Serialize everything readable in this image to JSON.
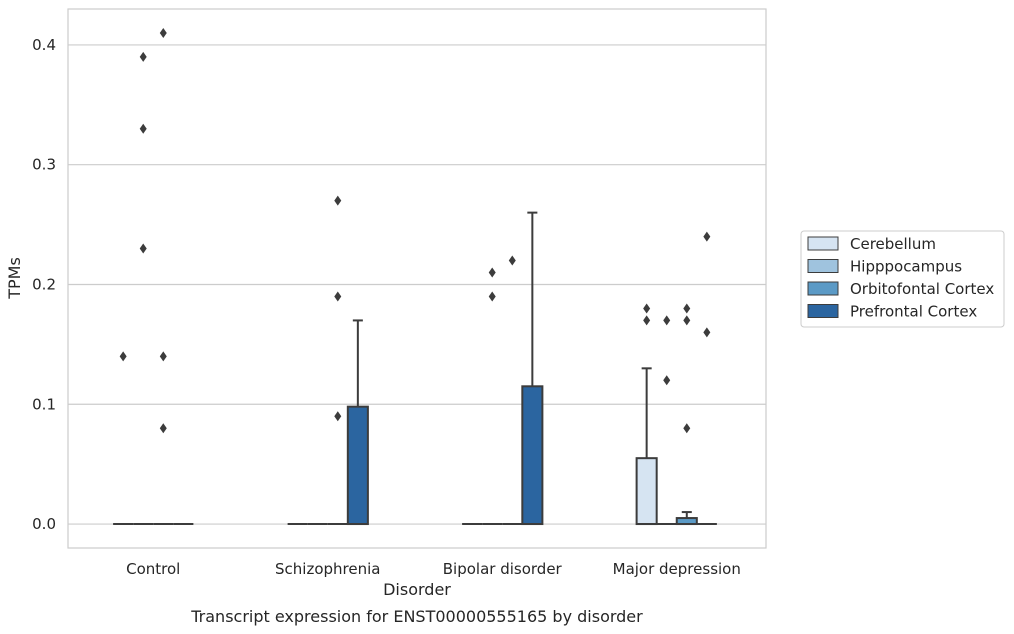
{
  "chart_data": {
    "type": "box",
    "title": "",
    "caption": "Transcript expression for ENST00000555165 by disorder",
    "xlabel": "Disorder",
    "ylabel": "TPMs",
    "ylim": [
      -0.02,
      0.43
    ],
    "yticks": [
      0.0,
      0.1,
      0.2,
      0.3,
      0.4
    ],
    "ytick_labels": [
      "0.0",
      "0.1",
      "0.2",
      "0.3",
      "0.4"
    ],
    "grid": "horizontal",
    "legend_position": "right",
    "categories": [
      "Control",
      "Schizophrenia",
      "Bipolar disorder",
      "Major depression"
    ],
    "series": [
      {
        "name": "Cerebellum",
        "color": "#d6e4f2",
        "boxes": [
          {
            "q1": 0,
            "median": 0,
            "q3": 0,
            "whisker_low": 0,
            "whisker_high": 0,
            "outliers": [
              0.14
            ]
          },
          {
            "q1": 0,
            "median": 0,
            "q3": 0,
            "whisker_low": 0,
            "whisker_high": 0,
            "outliers": []
          },
          {
            "q1": 0,
            "median": 0,
            "q3": 0,
            "whisker_low": 0,
            "whisker_high": 0,
            "outliers": []
          },
          {
            "q1": 0,
            "median": 0,
            "q3": 0.055,
            "whisker_low": 0,
            "whisker_high": 0.13,
            "outliers": [
              0.17,
              0.18
            ]
          }
        ]
      },
      {
        "name": "Hipppocampus",
        "color": "#9fc3de",
        "boxes": [
          {
            "q1": 0,
            "median": 0,
            "q3": 0,
            "whisker_low": 0,
            "whisker_high": 0,
            "outliers": [
              0.23,
              0.33,
              0.39
            ]
          },
          {
            "q1": 0,
            "median": 0,
            "q3": 0,
            "whisker_low": 0,
            "whisker_high": 0,
            "outliers": []
          },
          {
            "q1": 0,
            "median": 0,
            "q3": 0,
            "whisker_low": 0,
            "whisker_high": 0,
            "outliers": [
              0.19,
              0.21
            ]
          },
          {
            "q1": 0,
            "median": 0,
            "q3": 0,
            "whisker_low": 0,
            "whisker_high": 0,
            "outliers": [
              0.12,
              0.17
            ]
          }
        ]
      },
      {
        "name": "Orbitofontal Cortex",
        "color": "#5b9ac6",
        "boxes": [
          {
            "q1": 0,
            "median": 0,
            "q3": 0,
            "whisker_low": 0,
            "whisker_high": 0,
            "outliers": [
              0.08,
              0.14,
              0.41
            ]
          },
          {
            "q1": 0,
            "median": 0,
            "q3": 0,
            "whisker_low": 0,
            "whisker_high": 0,
            "outliers": [
              0.09,
              0.19,
              0.27
            ]
          },
          {
            "q1": 0,
            "median": 0,
            "q3": 0,
            "whisker_low": 0,
            "whisker_high": 0,
            "outliers": [
              0.22
            ]
          },
          {
            "q1": 0,
            "median": 0,
            "q3": 0.005,
            "whisker_low": 0,
            "whisker_high": 0.01,
            "outliers": [
              0.08,
              0.17,
              0.18
            ]
          }
        ]
      },
      {
        "name": "Prefrontal Cortex",
        "color": "#2b65a0",
        "boxes": [
          {
            "q1": 0,
            "median": 0,
            "q3": 0,
            "whisker_low": 0,
            "whisker_high": 0,
            "outliers": []
          },
          {
            "q1": 0,
            "median": 0,
            "q3": 0.098,
            "whisker_low": 0,
            "whisker_high": 0.17,
            "outliers": []
          },
          {
            "q1": 0,
            "median": 0,
            "q3": 0.115,
            "whisker_low": 0,
            "whisker_high": 0.26,
            "outliers": []
          },
          {
            "q1": 0,
            "median": 0,
            "q3": 0,
            "whisker_low": 0,
            "whisker_high": 0,
            "outliers": [
              0.16,
              0.24
            ]
          }
        ]
      }
    ]
  }
}
